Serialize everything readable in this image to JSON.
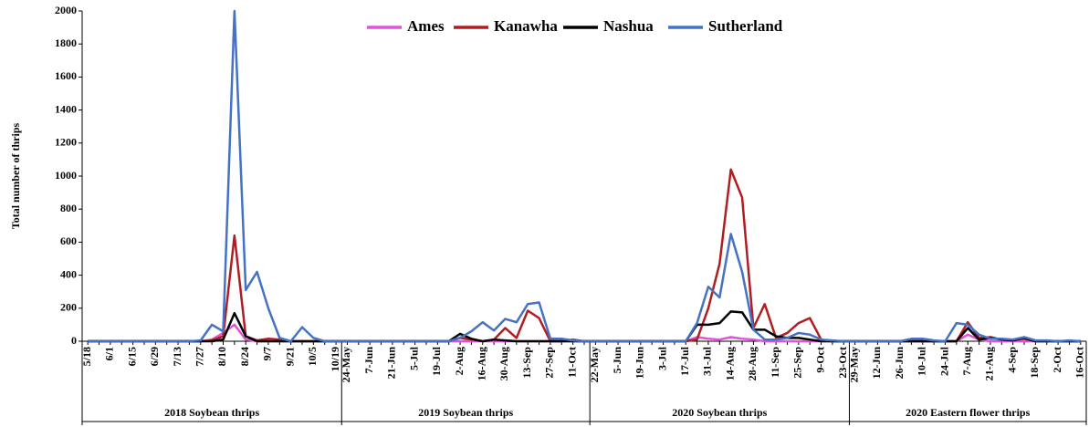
{
  "chart_data": {
    "type": "line",
    "y_label": "Total number  of thrips",
    "ylim": [
      0,
      2000
    ],
    "yticks": [
      0,
      200,
      400,
      600,
      800,
      1000,
      1200,
      1400,
      1600,
      1800,
      2000
    ],
    "grid": false,
    "legend": "top",
    "groups": [
      {
        "label": "2018 Soybean thrips",
        "categories": [
          "5/18",
          null,
          "6/1",
          null,
          "6/15",
          null,
          "6/29",
          null,
          "7/13",
          null,
          "7/27",
          null,
          "8/10",
          null,
          "8/24",
          null,
          "9/7",
          null,
          "9/21",
          null,
          "10/5",
          null,
          "10/19"
        ]
      },
      {
        "label": "2019 Soybean thrips",
        "categories": [
          "24-May",
          null,
          "7-Jun",
          null,
          "21-Jun",
          null,
          "5-Jul",
          null,
          "19-Jul",
          null,
          "2-Aug",
          null,
          "16-Aug",
          null,
          "30-Aug",
          null,
          "13-Sep",
          null,
          "27-Sep",
          null,
          "11-Oct",
          null
        ]
      },
      {
        "label": "2020 Soybean thrips",
        "categories": [
          "22-May",
          null,
          "5-Jun",
          null,
          "19-Jun",
          null,
          "3-Jul",
          null,
          "17-Jul",
          null,
          "31-Jul",
          null,
          "14-Aug",
          null,
          "28-Aug",
          null,
          "11-Sep",
          null,
          "25-Sep",
          null,
          "9-Oct",
          null,
          "23-Oct"
        ]
      },
      {
        "label": "2020 Eastern flower thrips",
        "categories": [
          "29-May",
          null,
          "12-Jun",
          null,
          "26-Jun",
          null,
          "10-Jul",
          null,
          "24-Jul",
          null,
          "7-Aug",
          null,
          "21-Aug",
          null,
          "4-Sep",
          null,
          "18-Sep",
          null,
          "2-Oct",
          null,
          "16-Oct"
        ]
      }
    ],
    "series": [
      {
        "name": "Ames",
        "color": "#e055d8",
        "values": [
          0,
          0,
          0,
          0,
          0,
          0,
          0,
          0,
          0,
          0,
          0,
          10,
          50,
          100,
          10,
          0,
          0,
          0,
          0,
          0,
          0,
          0,
          0,
          0,
          0,
          0,
          0,
          0,
          0,
          0,
          0,
          0,
          0,
          0,
          0,
          0,
          0,
          0,
          0,
          0,
          0,
          0,
          0,
          0,
          0,
          0,
          0,
          0,
          0,
          0,
          0,
          0,
          0,
          0,
          25,
          15,
          10,
          25,
          15,
          10,
          0,
          0,
          0,
          0,
          0,
          0,
          0,
          0,
          0,
          0,
          0,
          0,
          0,
          0,
          0,
          0,
          0,
          0,
          40,
          10,
          0,
          0,
          0,
          0,
          0,
          0,
          0,
          0,
          0
        ]
      },
      {
        "name": "Kanawha",
        "color": "#b01e23",
        "values": [
          0,
          0,
          0,
          0,
          0,
          0,
          0,
          0,
          0,
          0,
          0,
          5,
          30,
          640,
          30,
          5,
          15,
          10,
          0,
          0,
          0,
          0,
          0,
          0,
          0,
          0,
          0,
          0,
          0,
          0,
          0,
          0,
          0,
          20,
          10,
          0,
          10,
          80,
          20,
          185,
          140,
          0,
          0,
          10,
          0,
          0,
          0,
          0,
          0,
          0,
          0,
          0,
          0,
          0,
          10,
          200,
          470,
          1040,
          870,
          80,
          225,
          20,
          50,
          110,
          140,
          10,
          0,
          0,
          0,
          0,
          0,
          0,
          0,
          0,
          0,
          0,
          0,
          0,
          115,
          20,
          25,
          10,
          10,
          15,
          0,
          0,
          0,
          0,
          0
        ]
      },
      {
        "name": "Nashua",
        "color": "#000000",
        "values": [
          0,
          0,
          0,
          0,
          0,
          0,
          0,
          0,
          0,
          0,
          0,
          0,
          10,
          170,
          30,
          0,
          0,
          0,
          0,
          0,
          0,
          0,
          0,
          0,
          0,
          0,
          0,
          0,
          0,
          0,
          0,
          0,
          0,
          45,
          15,
          0,
          10,
          5,
          0,
          0,
          0,
          0,
          0,
          0,
          0,
          0,
          0,
          0,
          0,
          0,
          0,
          0,
          0,
          0,
          100,
          100,
          110,
          180,
          175,
          70,
          70,
          30,
          20,
          20,
          10,
          0,
          0,
          0,
          0,
          0,
          0,
          0,
          0,
          0,
          0,
          0,
          0,
          0,
          80,
          10,
          20,
          10,
          5,
          20,
          0,
          0,
          0,
          0,
          0
        ]
      },
      {
        "name": "Sutherland",
        "color": "#4472c4",
        "values": [
          0,
          0,
          0,
          0,
          0,
          0,
          0,
          0,
          0,
          0,
          5,
          100,
          60,
          2000,
          310,
          420,
          200,
          20,
          0,
          85,
          20,
          0,
          0,
          0,
          0,
          0,
          0,
          0,
          0,
          0,
          0,
          0,
          0,
          20,
          60,
          115,
          65,
          135,
          115,
          225,
          235,
          15,
          15,
          5,
          0,
          0,
          0,
          0,
          0,
          0,
          0,
          0,
          0,
          0,
          110,
          330,
          265,
          650,
          420,
          70,
          10,
          10,
          20,
          50,
          40,
          10,
          5,
          0,
          0,
          0,
          0,
          0,
          0,
          15,
          15,
          5,
          0,
          110,
          100,
          40,
          15,
          15,
          10,
          25,
          5,
          5,
          0,
          5,
          0
        ]
      }
    ]
  }
}
